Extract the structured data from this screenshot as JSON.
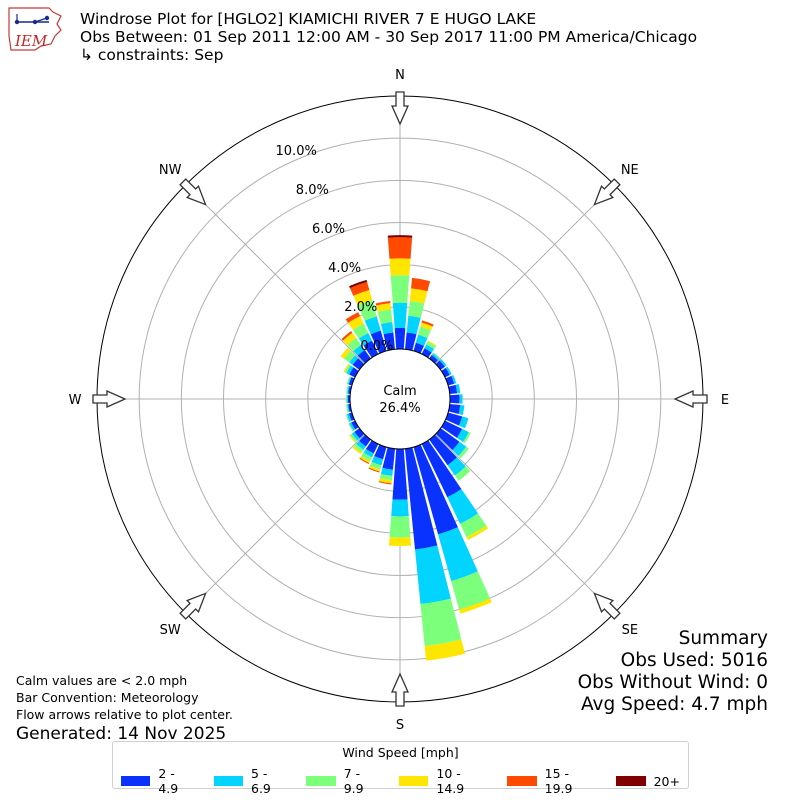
{
  "header": {
    "title_line1": "Windrose Plot for [HGLO2] KIAMICHI RIVER 7 E HUGO LAKE",
    "title_line2": "Obs Between: 01 Sep 2011 12:00 AM - 30 Sep 2017 11:00 PM America/Chicago",
    "title_line3": "↳ constraints: Sep",
    "logo_text": "IEM"
  },
  "notes": {
    "calm_note": "Calm values are < 2.0 mph",
    "bar_convention": "Bar Convention: Meteorology",
    "flow_arrows": "Flow arrows relative to plot center.",
    "generated": "Generated: 14 Nov 2025"
  },
  "summary": {
    "title": "Summary",
    "obs_used": "Obs Used: 5016",
    "obs_without_wind": "Obs Without Wind: 0",
    "avg_speed": "Avg Speed: 4.7 mph"
  },
  "legend": {
    "title": "Wind Speed [mph]",
    "items": [
      {
        "label": "2 - 4.9",
        "color": "#0a32ff"
      },
      {
        "label": "5 - 6.9",
        "color": "#00d4ff"
      },
      {
        "label": "7 - 9.9",
        "color": "#7cff7a"
      },
      {
        "label": "10 - 14.9",
        "color": "#ffe600"
      },
      {
        "label": "15 - 19.9",
        "color": "#ff4a00"
      },
      {
        "label": "20+",
        "color": "#800000"
      }
    ]
  },
  "chart_data": {
    "type": "windrose",
    "center_label": "Calm",
    "center_value": "26.4%",
    "compass_labels": [
      "N",
      "NE",
      "E",
      "SE",
      "S",
      "SW",
      "W",
      "NW"
    ],
    "radial_ticks": [
      0,
      2,
      4,
      6,
      8,
      10
    ],
    "radial_tick_labels": [
      "0.0%",
      "2.0%",
      "4.0%",
      "6.0%",
      "8.0%",
      "10.0%"
    ],
    "radial_max": 12,
    "bin_directions_deg": [
      0,
      10,
      20,
      30,
      40,
      50,
      60,
      70,
      80,
      90,
      100,
      110,
      120,
      130,
      140,
      150,
      160,
      170,
      180,
      190,
      200,
      210,
      220,
      230,
      240,
      250,
      260,
      270,
      280,
      290,
      300,
      310,
      320,
      330,
      340,
      350
    ],
    "speed_bins": [
      "2 - 4.9",
      "5 - 6.9",
      "7 - 9.9",
      "10 - 14.9",
      "15 - 19.9",
      "20+"
    ],
    "bins": [
      {
        "dir": 0,
        "values": [
          1.0,
          1.2,
          1.3,
          0.8,
          1.0,
          0.1
        ]
      },
      {
        "dir": 10,
        "values": [
          0.8,
          0.8,
          0.7,
          0.6,
          0.5
        ]
      },
      {
        "dir": 20,
        "values": [
          0.4,
          0.4,
          0.4,
          0.2,
          0.1
        ]
      },
      {
        "dir": 30,
        "values": [
          0.3,
          0.2,
          0.15,
          0.05
        ]
      },
      {
        "dir": 40,
        "values": [
          0.2,
          0.1,
          0.05
        ]
      },
      {
        "dir": 50,
        "values": [
          0.25,
          0.1
        ]
      },
      {
        "dir": 60,
        "values": [
          0.25,
          0.1
        ]
      },
      {
        "dir": 70,
        "values": [
          0.3,
          0.1
        ]
      },
      {
        "dir": 80,
        "values": [
          0.35,
          0.15
        ]
      },
      {
        "dir": 90,
        "values": [
          0.45,
          0.15
        ]
      },
      {
        "dir": 100,
        "values": [
          0.5,
          0.2
        ]
      },
      {
        "dir": 110,
        "values": [
          0.7,
          0.3
        ]
      },
      {
        "dir": 120,
        "values": [
          0.9,
          0.35,
          0.1
        ]
      },
      {
        "dir": 130,
        "values": [
          1.1,
          0.4,
          0.15
        ]
      },
      {
        "dir": 140,
        "values": [
          1.5,
          0.6,
          0.3
        ]
      },
      {
        "dir": 150,
        "values": [
          2.8,
          1.4,
          0.7,
          0.15
        ]
      },
      {
        "dir": 160,
        "values": [
          4.3,
          2.3,
          1.4,
          0.2
        ]
      },
      {
        "dir": 170,
        "values": [
          4.8,
          2.6,
          2.0,
          0.7
        ]
      },
      {
        "dir": 180,
        "values": [
          2.4,
          0.8,
          1.0,
          0.4
        ]
      },
      {
        "dir": 190,
        "values": [
          1.0,
          0.3,
          0.2,
          0.15,
          0.05
        ]
      },
      {
        "dir": 200,
        "values": [
          0.6,
          0.3,
          0.2,
          0.1,
          0.05
        ]
      },
      {
        "dir": 210,
        "values": [
          0.5,
          0.2,
          0.2,
          0.1,
          0.05
        ]
      },
      {
        "dir": 220,
        "values": [
          0.4,
          0.2,
          0.15,
          0.1
        ]
      },
      {
        "dir": 230,
        "values": [
          0.3,
          0.15,
          0.1,
          0.05
        ]
      },
      {
        "dir": 240,
        "values": [
          0.2,
          0.1,
          0.05
        ]
      },
      {
        "dir": 250,
        "values": [
          0.15,
          0.1,
          0.05
        ]
      },
      {
        "dir": 260,
        "values": [
          0.1,
          0.05,
          0.05
        ]
      },
      {
        "dir": 270,
        "values": [
          0.1,
          0.05,
          0.05
        ]
      },
      {
        "dir": 280,
        "values": [
          0.1,
          0.05,
          0.05
        ]
      },
      {
        "dir": 290,
        "values": [
          0.15,
          0.05,
          0.05
        ]
      },
      {
        "dir": 300,
        "values": [
          0.3,
          0.15,
          0.1,
          0.05
        ]
      },
      {
        "dir": 310,
        "values": [
          0.4,
          0.2,
          0.3,
          0.2
        ]
      },
      {
        "dir": 320,
        "values": [
          0.5,
          0.3,
          0.4,
          0.3,
          0.1
        ]
      },
      {
        "dir": 330,
        "values": [
          0.7,
          0.4,
          0.5,
          0.4,
          0.2
        ]
      },
      {
        "dir": 340,
        "values": [
          1.0,
          0.7,
          0.8,
          0.5,
          0.4,
          0.1
        ]
      },
      {
        "dir": 350,
        "values": [
          0.8,
          0.5,
          0.6,
          0.3,
          0.1
        ]
      }
    ]
  }
}
